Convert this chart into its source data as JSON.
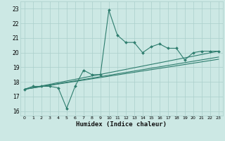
{
  "xlabel": "Humidex (Indice chaleur)",
  "bg_color": "#cce8e4",
  "grid_color": "#aacfcb",
  "line_color": "#2e7d6e",
  "xlim": [
    -0.5,
    23.5
  ],
  "ylim": [
    15.7,
    23.5
  ],
  "xticks": [
    0,
    1,
    2,
    3,
    4,
    5,
    6,
    7,
    8,
    9,
    10,
    11,
    12,
    13,
    14,
    15,
    16,
    17,
    18,
    19,
    20,
    21,
    22,
    23
  ],
  "yticks": [
    16,
    17,
    18,
    19,
    20,
    21,
    22,
    23
  ],
  "line1_x": [
    0,
    1,
    2,
    3,
    4,
    5,
    6,
    7,
    8,
    9,
    10,
    11,
    12,
    13,
    14,
    15,
    16,
    17,
    18,
    19,
    20,
    21,
    22,
    23
  ],
  "line1_y": [
    17.5,
    17.7,
    17.7,
    17.7,
    17.6,
    16.2,
    17.7,
    18.8,
    18.5,
    18.5,
    22.9,
    21.2,
    20.7,
    20.7,
    20.0,
    20.4,
    20.6,
    20.3,
    20.3,
    19.5,
    20.0,
    20.1,
    20.1,
    20.1
  ],
  "line2_x": [
    0,
    23
  ],
  "line2_y": [
    17.5,
    20.1
  ],
  "line3_x": [
    0,
    23
  ],
  "line3_y": [
    17.5,
    19.7
  ],
  "line4_x": [
    0,
    23
  ],
  "line4_y": [
    17.5,
    19.55
  ]
}
